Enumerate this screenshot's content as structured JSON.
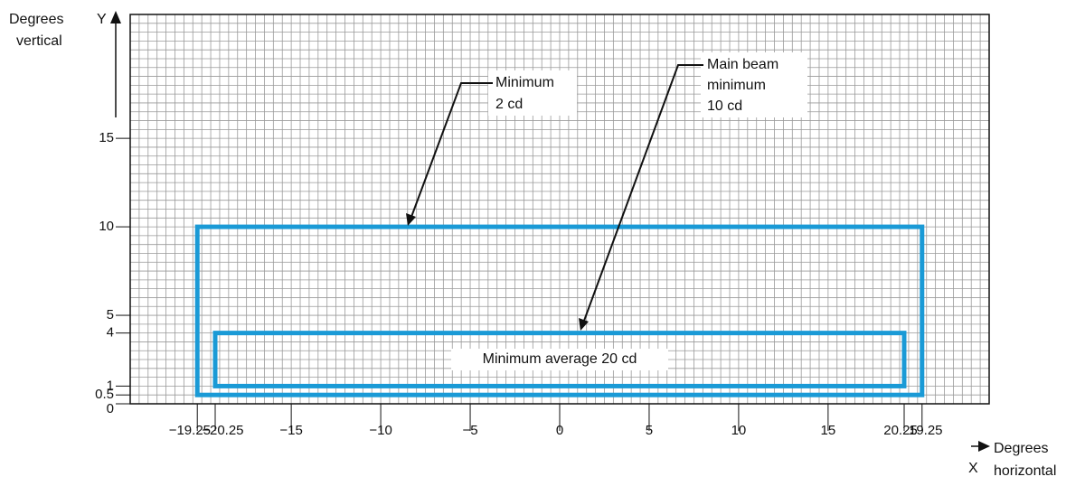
{
  "chart_data": {
    "type": "region",
    "xlabel": [
      "Degrees",
      "horizontal"
    ],
    "xaxis_letter": "X",
    "ylabel": [
      "Degrees",
      "vertical"
    ],
    "yaxis_letter": "Y",
    "xlim": [
      -24,
      24
    ],
    "ylim": [
      0,
      22
    ],
    "xticks": [
      {
        "value": -20.25,
        "label": "−20.25"
      },
      {
        "value": -19.25,
        "label": "−19.25"
      },
      {
        "value": -15,
        "label": "−15"
      },
      {
        "value": -10,
        "label": "−10"
      },
      {
        "value": -5,
        "label": "−5"
      },
      0,
      5,
      10,
      15,
      19.25,
      20.25
    ],
    "yticks": [
      0,
      0.5,
      1,
      4,
      5,
      10,
      15
    ],
    "grid": true,
    "grid_step": 0.5,
    "regions": [
      {
        "x": [
          -20.25,
          20.25
        ],
        "y": [
          0.5,
          10
        ],
        "color": "#1a9ad6"
      },
      {
        "x": [
          -19.25,
          19.25
        ],
        "y": [
          1,
          4
        ],
        "color": "#1a9ad6",
        "label": "Minimum average 20 cd"
      }
    ],
    "annotations": [
      {
        "lines": [
          "Minimum",
          "2 cd"
        ]
      },
      {
        "lines": [
          "Main beam",
          "minimum",
          "10 cd"
        ]
      }
    ]
  }
}
